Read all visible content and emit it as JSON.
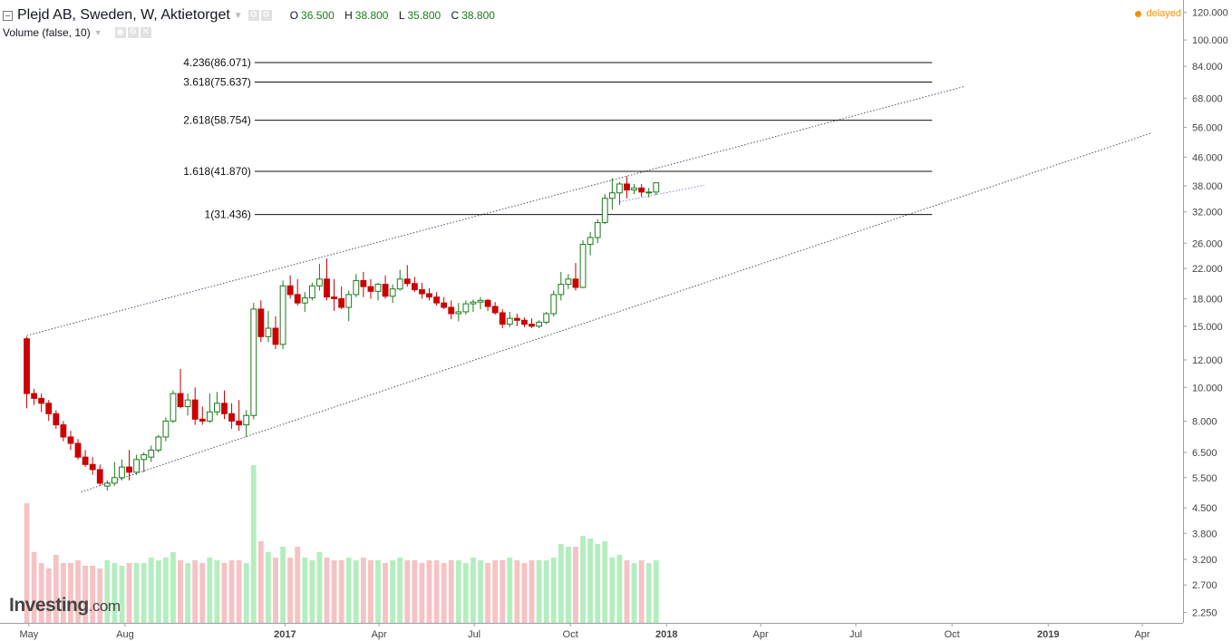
{
  "header": {
    "title": "Plejd AB, Sweden, W, Aktietorget",
    "ohlc": [
      {
        "key": "O",
        "value": "36.500"
      },
      {
        "key": "H",
        "value": "38.800"
      },
      {
        "key": "L",
        "value": "35.800"
      },
      {
        "key": "C",
        "value": "38.800"
      }
    ],
    "volume_label": "Volume (false, 10)",
    "status": "delayed"
  },
  "logo": {
    "name": "Investing",
    "suffix": ".com"
  },
  "colors": {
    "up": "#1b7b1b",
    "down": "#c40000",
    "up_fill": "#ffffff",
    "down_fill": "#cc0000",
    "vol_up": "#b4eebf",
    "vol_down": "#f6c2c3",
    "delayed": "#ff8f00"
  },
  "chart_data": {
    "type": "candlestick",
    "scale": "log",
    "y_ticks": [
      "120.000",
      "100.000",
      "84.000",
      "68.000",
      "56.000",
      "46.000",
      "38.000",
      "32.000",
      "26.000",
      "22.000",
      "18.000",
      "15.000",
      "12.000",
      "10.000",
      "8.000",
      "6.500",
      "5.500",
      "4.500",
      "3.800",
      "3.200",
      "2.700",
      "2.250"
    ],
    "x_ticks": [
      {
        "label": "May",
        "date": "2016-05-01"
      },
      {
        "label": "Aug",
        "date": "2016-08-01"
      },
      {
        "label": "2017",
        "date": "2017-01-01"
      },
      {
        "label": "Apr",
        "date": "2017-04-01"
      },
      {
        "label": "Jul",
        "date": "2017-07-01"
      },
      {
        "label": "Oct",
        "date": "2017-10-01"
      },
      {
        "label": "2018",
        "date": "2018-01-01"
      },
      {
        "label": "Apr",
        "date": "2018-04-01"
      },
      {
        "label": "Jul",
        "date": "2018-07-01"
      },
      {
        "label": "Oct",
        "date": "2018-10-01"
      },
      {
        "label": "2019",
        "date": "2019-01-01"
      },
      {
        "label": "Apr",
        "date": "2019-04-01"
      }
    ],
    "x_range": [
      "2016-04-06",
      "2019-05-10"
    ],
    "y_range": [
      2.1,
      128
    ],
    "fib_levels": [
      {
        "label": "4.236(86.071)",
        "value": 86.071
      },
      {
        "label": "3.618(75.637)",
        "value": 75.637
      },
      {
        "label": "2.618(58.754)",
        "value": 58.754
      },
      {
        "label": "1.618(41.870)",
        "value": 41.87
      },
      {
        "label": "1(31.436)",
        "value": 31.436
      }
    ],
    "fib_x_range": [
      "2016-12-03",
      "2018-09-12"
    ],
    "trendlines": [
      {
        "from": [
          "2016-04-29",
          14.1
        ],
        "to": [
          "2018-10-13",
          73.5
        ],
        "style": "dotted"
      },
      {
        "from": [
          "2016-06-20",
          5.0
        ],
        "to": [
          "2019-04-10",
          54.0
        ],
        "style": "dotted"
      },
      {
        "from": [
          "2017-11-17",
          34.2
        ],
        "to": [
          "2018-02-06",
          38.2
        ],
        "style": "dotted-blue"
      }
    ],
    "first_candle_date": "2016-04-29",
    "interval_days": 7,
    "candles": [
      [
        13.8,
        14.0,
        8.7,
        9.6,
        4.4
      ],
      [
        9.6,
        9.9,
        8.9,
        9.3,
        2.6
      ],
      [
        9.3,
        9.6,
        8.5,
        9.0,
        2.2
      ],
      [
        9.0,
        9.2,
        8.0,
        8.4,
        2.0
      ],
      [
        8.4,
        8.6,
        7.6,
        7.8,
        2.5
      ],
      [
        7.8,
        8.0,
        7.0,
        7.2,
        2.2
      ],
      [
        7.2,
        7.5,
        6.6,
        6.9,
        2.2
      ],
      [
        6.9,
        7.1,
        6.2,
        6.3,
        2.3
      ],
      [
        6.3,
        6.6,
        5.9,
        6.0,
        2.1
      ],
      [
        6.0,
        6.3,
        5.6,
        5.8,
        2.1
      ],
      [
        5.8,
        6.0,
        5.2,
        5.3,
        2.0
      ],
      [
        5.2,
        5.4,
        5.05,
        5.3,
        2.3
      ],
      [
        5.3,
        6.1,
        5.2,
        5.5,
        2.2
      ],
      [
        5.5,
        6.2,
        5.4,
        5.9,
        2.1
      ],
      [
        5.9,
        6.6,
        5.4,
        5.7,
        2.2
      ],
      [
        5.7,
        6.4,
        5.6,
        6.2,
        2.2
      ],
      [
        6.2,
        6.5,
        5.7,
        6.4,
        2.2
      ],
      [
        6.3,
        6.8,
        6.1,
        6.6,
        2.4
      ],
      [
        6.6,
        7.3,
        6.5,
        7.2,
        2.3
      ],
      [
        7.2,
        8.2,
        7.0,
        8.0,
        2.4
      ],
      [
        8.0,
        9.8,
        7.9,
        9.6,
        2.6
      ],
      [
        9.6,
        11.3,
        8.7,
        8.8,
        2.3
      ],
      [
        8.8,
        9.6,
        8.3,
        9.2,
        2.2
      ],
      [
        9.2,
        10.0,
        7.8,
        8.1,
        2.3
      ],
      [
        8.1,
        8.8,
        7.8,
        8.0,
        2.2
      ],
      [
        8.0,
        9.6,
        7.9,
        8.5,
        2.4
      ],
      [
        8.5,
        9.7,
        8.3,
        9.0,
        2.3
      ],
      [
        9.0,
        9.8,
        8.1,
        8.4,
        2.2
      ],
      [
        8.4,
        9.0,
        7.6,
        8.0,
        2.3
      ],
      [
        8.0,
        9.2,
        7.5,
        7.8,
        2.3
      ],
      [
        7.8,
        8.6,
        7.2,
        8.3,
        2.2
      ],
      [
        8.3,
        17.5,
        8.1,
        16.8,
        5.8
      ],
      [
        16.8,
        17.8,
        13.5,
        14.0,
        3.0
      ],
      [
        14.0,
        16.6,
        13.5,
        14.8,
        2.6
      ],
      [
        14.8,
        16.0,
        12.9,
        13.3,
        2.4
      ],
      [
        13.3,
        20.3,
        12.9,
        19.6,
        2.8
      ],
      [
        19.6,
        21.0,
        18.0,
        18.5,
        2.4
      ],
      [
        18.5,
        20.5,
        17.2,
        17.5,
        2.8
      ],
      [
        17.5,
        18.8,
        16.5,
        18.1,
        2.4
      ],
      [
        18.1,
        20.0,
        17.8,
        19.6,
        2.3
      ],
      [
        19.6,
        22.7,
        19.0,
        20.5,
        2.6
      ],
      [
        20.5,
        23.5,
        17.8,
        18.2,
        2.4
      ],
      [
        18.2,
        20.5,
        16.6,
        18.0,
        2.3
      ],
      [
        18.0,
        19.5,
        16.8,
        17.0,
        2.3
      ],
      [
        17.0,
        19.0,
        15.5,
        18.5,
        2.4
      ],
      [
        18.5,
        21.2,
        18.2,
        20.3,
        2.3
      ],
      [
        20.3,
        21.5,
        18.2,
        19.5,
        2.4
      ],
      [
        19.5,
        20.5,
        18.0,
        18.9,
        2.3
      ],
      [
        18.9,
        20.0,
        17.8,
        19.8,
        2.3
      ],
      [
        19.8,
        21.0,
        18.0,
        18.3,
        2.2
      ],
      [
        18.3,
        19.8,
        17.5,
        19.2,
        2.3
      ],
      [
        19.2,
        21.8,
        19.0,
        20.5,
        2.4
      ],
      [
        20.5,
        22.5,
        19.5,
        19.9,
        2.3
      ],
      [
        19.9,
        20.8,
        18.8,
        19.1,
        2.3
      ],
      [
        19.1,
        20.0,
        18.0,
        18.6,
        2.2
      ],
      [
        18.6,
        19.3,
        17.8,
        18.2,
        2.3
      ],
      [
        18.2,
        18.8,
        17.2,
        17.5,
        2.3
      ],
      [
        17.5,
        18.2,
        16.8,
        17.0,
        2.2
      ],
      [
        17.0,
        17.8,
        15.7,
        16.3,
        2.3
      ],
      [
        16.3,
        17.5,
        15.5,
        16.5,
        2.3
      ],
      [
        16.5,
        17.8,
        16.2,
        17.4,
        2.2
      ],
      [
        17.4,
        17.9,
        16.5,
        17.6,
        2.4
      ],
      [
        17.6,
        18.2,
        16.8,
        17.8,
        2.3
      ],
      [
        17.8,
        18.0,
        16.6,
        17.1,
        2.2
      ],
      [
        17.1,
        17.6,
        16.2,
        16.4,
        2.3
      ],
      [
        16.4,
        16.8,
        14.8,
        15.2,
        2.3
      ],
      [
        15.2,
        16.5,
        14.9,
        15.8,
        2.4
      ],
      [
        15.8,
        16.3,
        15.0,
        15.6,
        2.3
      ],
      [
        15.6,
        15.9,
        14.9,
        15.2,
        2.2
      ],
      [
        15.2,
        15.8,
        14.8,
        15.0,
        2.3
      ],
      [
        15.0,
        15.6,
        14.8,
        15.4,
        2.3
      ],
      [
        15.4,
        16.5,
        15.2,
        16.3,
        2.3
      ],
      [
        16.3,
        19.0,
        16.0,
        18.5,
        2.4
      ],
      [
        18.5,
        21.5,
        17.8,
        19.8,
        2.9
      ],
      [
        19.8,
        21.2,
        19.2,
        20.5,
        2.8
      ],
      [
        20.5,
        22.8,
        19.0,
        19.4,
        2.8
      ],
      [
        19.4,
        26.5,
        19.3,
        25.8,
        3.2
      ],
      [
        25.8,
        28.0,
        24.0,
        27.0,
        3.1
      ],
      [
        27.0,
        30.5,
        26.0,
        29.8,
        2.9
      ],
      [
        29.8,
        36.0,
        29.5,
        35.0,
        3.0
      ],
      [
        35.0,
        40.0,
        32.5,
        36.3,
        2.4
      ],
      [
        36.3,
        39.0,
        33.5,
        38.5,
        2.5
      ],
      [
        38.5,
        40.5,
        35.0,
        37.0,
        2.3
      ],
      [
        37.0,
        38.5,
        36.0,
        37.5,
        2.2
      ],
      [
        37.5,
        38.5,
        35.4,
        36.5,
        2.3
      ],
      [
        36.5,
        37.5,
        35.2,
        36.5,
        2.2
      ],
      [
        36.5,
        38.8,
        35.8,
        38.8,
        2.3
      ]
    ]
  }
}
